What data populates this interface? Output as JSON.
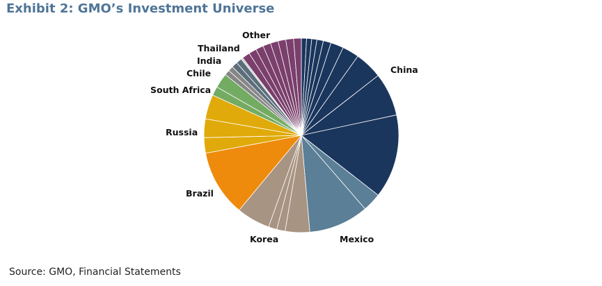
{
  "title": "Exhibit 2: GMO’s Investment Universe",
  "source": "Source: GMO, Financial Statements",
  "chart_data": {
    "type": "pie",
    "title": "",
    "start": "12 o'clock",
    "direction": "clockwise",
    "legend": "none",
    "categories": [
      "China",
      "Mexico",
      "Korea",
      "Brazil",
      "Russia",
      "South Africa",
      "Chile",
      "India",
      "Thailand",
      "Other"
    ],
    "colors": {
      "China": "#1b365d",
      "Mexico": "#5b7f96",
      "Korea": "#a89482",
      "Brazil": "#ee8b0c",
      "Russia": "#e0aa0a",
      "South Africa": "#74ab63",
      "Chile": "#868686",
      "India": "#5c6e7c",
      "Thailand": "#cfcfcf",
      "Other": "#7a3f6c"
    },
    "slices": [
      {
        "category": "China",
        "value": 0.8
      },
      {
        "category": "China",
        "value": 0.8
      },
      {
        "category": "China",
        "value": 0.8
      },
      {
        "category": "China",
        "value": 1.0
      },
      {
        "category": "China",
        "value": 1.2
      },
      {
        "category": "China",
        "value": 2.0
      },
      {
        "category": "China",
        "value": 2.6
      },
      {
        "category": "China",
        "value": 4.3
      },
      {
        "category": "China",
        "value": 6.7
      },
      {
        "category": "China",
        "value": 13.0
      },
      {
        "category": "Mexico",
        "value": 2.9
      },
      {
        "category": "Mexico",
        "value": 9.3
      },
      {
        "category": "Korea",
        "value": 3.8
      },
      {
        "category": "Korea",
        "value": 1.3
      },
      {
        "category": "Korea",
        "value": 1.3
      },
      {
        "category": "Korea",
        "value": 5.2
      },
      {
        "category": "Brazil",
        "value": 10.3
      },
      {
        "category": "Russia",
        "value": 2.4
      },
      {
        "category": "Russia",
        "value": 2.9
      },
      {
        "category": "Russia",
        "value": 3.8
      },
      {
        "category": "South Africa",
        "value": 1.4
      },
      {
        "category": "South Africa",
        "value": 2.3
      },
      {
        "category": "Chile",
        "value": 0.8
      },
      {
        "category": "Chile",
        "value": 0.8
      },
      {
        "category": "India",
        "value": 0.9
      },
      {
        "category": "India",
        "value": 0.9
      },
      {
        "category": "Thailand",
        "value": 0.3
      },
      {
        "category": "Other",
        "value": 1.2
      },
      {
        "category": "Other",
        "value": 1.2
      },
      {
        "category": "Other",
        "value": 1.2
      },
      {
        "category": "Other",
        "value": 1.2
      },
      {
        "category": "Other",
        "value": 1.2
      },
      {
        "category": "Other",
        "value": 1.2
      },
      {
        "category": "Other",
        "value": 1.2
      },
      {
        "category": "Other",
        "value": 1.2
      }
    ]
  }
}
